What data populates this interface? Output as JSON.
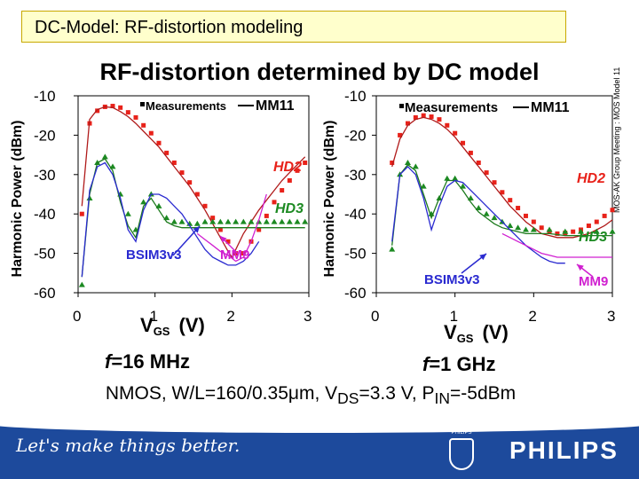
{
  "header": {
    "title": "DC-Model: RF-distortion modeling"
  },
  "slide_title": "RF-distortion determined by DC model",
  "side_note": "MOS-AK Group Meeting : MOS Model 11",
  "conditions_parts": [
    "NMOS, W/L=160/0.35",
    "m, V",
    "DS",
    "=3.3 V, P",
    "IN",
    "=-5dBm"
  ],
  "mu": "μ",
  "footer": {
    "slogan": "Let's make things better.",
    "brand": "PHILIPS",
    "shield_text": "PHILIPS"
  },
  "colors": {
    "hd2": "#e8221a",
    "hd3": "#1c8a22",
    "mm11": "#b01a1a",
    "bsim": "#2a2ad0",
    "mm9": "#d020d0",
    "footer": "#1d4a9c"
  },
  "chart_data": [
    {
      "type": "line",
      "freq_prefix": "f",
      "freq_value": "=16 MHz",
      "ylabel": "Harmonic Power (dBm)",
      "xlabel_main": "V",
      "xlabel_sub": "GS",
      "xlabel_unit": "(V)",
      "xlim": [
        0,
        3
      ],
      "ylim": [
        -60,
        -10
      ],
      "xticks": [
        0,
        1,
        2,
        3
      ],
      "yticks": [
        -10,
        -20,
        -30,
        -40,
        -50,
        -60
      ],
      "legend": {
        "measurements": "Measurements",
        "model": "MM11"
      },
      "labels": {
        "hd2": "HD2",
        "hd3": "HD3",
        "bsim": "BSIM3v3",
        "mm9": "MM9"
      },
      "series": [
        {
          "name": "HD2",
          "kind": "meas",
          "color": "#e8221a",
          "marker": "square",
          "x": [
            0.05,
            0.15,
            0.25,
            0.35,
            0.45,
            0.55,
            0.65,
            0.75,
            0.85,
            0.95,
            1.05,
            1.15,
            1.25,
            1.35,
            1.45,
            1.55,
            1.65,
            1.75,
            1.85,
            1.95,
            2.05,
            2.15,
            2.25,
            2.35,
            2.45,
            2.55,
            2.65,
            2.75,
            2.85,
            2.95
          ],
          "y": [
            -40,
            -17,
            -13.8,
            -12.8,
            -12.6,
            -13,
            -14.2,
            -15.5,
            -17.5,
            -19.5,
            -22,
            -24.5,
            -27,
            -29.5,
            -32,
            -35,
            -38,
            -41,
            -44,
            -47,
            -50,
            -50,
            -47,
            -44,
            -40.5,
            -37,
            -34,
            -31.5,
            -29,
            -27
          ]
        },
        {
          "name": "HD2",
          "kind": "model",
          "color": "#b01a1a",
          "x": [
            0.05,
            0.15,
            0.25,
            0.35,
            0.45,
            0.55,
            0.65,
            0.75,
            0.85,
            0.95,
            1.05,
            1.15,
            1.25,
            1.35,
            1.45,
            1.55,
            1.65,
            1.75,
            1.85,
            1.95,
            2.0,
            2.05,
            2.15,
            2.25,
            2.35,
            2.45,
            2.55,
            2.65,
            2.75,
            2.85,
            2.95
          ],
          "y": [
            -38,
            -16,
            -13.5,
            -12.8,
            -13,
            -14,
            -15.3,
            -17,
            -19,
            -21,
            -23,
            -25.5,
            -28,
            -30.5,
            -33,
            -36,
            -39,
            -42.5,
            -46,
            -49.5,
            -51,
            -49,
            -45,
            -42,
            -39,
            -36.5,
            -34,
            -31.5,
            -29.5,
            -27.5,
            -25.5
          ]
        },
        {
          "name": "HD3",
          "kind": "meas",
          "color": "#1c8a22",
          "marker": "triangle",
          "x": [
            0.05,
            0.15,
            0.25,
            0.35,
            0.45,
            0.55,
            0.65,
            0.75,
            0.85,
            0.95,
            1.05,
            1.15,
            1.25,
            1.35,
            1.45,
            1.55,
            1.65,
            1.75,
            1.85,
            1.95,
            2.05,
            2.15,
            2.25,
            2.35,
            2.45,
            2.55,
            2.65,
            2.75,
            2.85,
            2.95
          ],
          "y": [
            -58,
            -36,
            -27,
            -25.5,
            -28,
            -35,
            -40,
            -44,
            -37,
            -35,
            -38,
            -41,
            -42,
            -42,
            -42.5,
            -42.5,
            -42,
            -42,
            -42,
            -42,
            -42,
            -42,
            -42,
            -42,
            -42,
            -42,
            -42,
            -42,
            -42,
            -42
          ]
        },
        {
          "name": "HD3",
          "kind": "model",
          "color": "#1c7a1c",
          "x": [
            0.05,
            0.15,
            0.25,
            0.35,
            0.45,
            0.55,
            0.65,
            0.75,
            0.85,
            0.95,
            1.05,
            1.15,
            1.25,
            1.35,
            1.45,
            1.55,
            1.65,
            1.75,
            1.85,
            2.05,
            2.25,
            2.45,
            2.65,
            2.85,
            2.95
          ],
          "y": [
            -56,
            -35,
            -27,
            -26,
            -29,
            -37,
            -43,
            -46,
            -38,
            -36,
            -39,
            -42,
            -43,
            -43.5,
            -43.5,
            -43.5,
            -43.5,
            -43.5,
            -43.5,
            -43.5,
            -43.5,
            -43.5,
            -43.5,
            -43.5,
            -43.5
          ]
        },
        {
          "name": "BSIM3v3",
          "kind": "model",
          "color": "#2a2ad0",
          "x": [
            0.05,
            0.15,
            0.25,
            0.35,
            0.45,
            0.55,
            0.65,
            0.75,
            0.85,
            0.95,
            1.05,
            1.15,
            1.25,
            1.35,
            1.45,
            1.55,
            1.65,
            1.75,
            1.85,
            1.95,
            2.05,
            2.15,
            2.25,
            2.35
          ],
          "y": [
            -56,
            -34,
            -28,
            -27,
            -30,
            -36,
            -44,
            -47,
            -39,
            -35,
            -35,
            -36,
            -38,
            -40,
            -43,
            -46,
            -49,
            -51,
            -52,
            -53,
            -53,
            -52,
            -50,
            -47
          ]
        },
        {
          "name": "MM9",
          "kind": "model",
          "color": "#d020d0",
          "x": [
            1.55,
            1.65,
            1.75,
            1.85,
            1.95,
            2.05,
            2.15,
            2.25,
            2.35,
            2.45
          ],
          "y": [
            -45,
            -46.5,
            -48,
            -49.5,
            -50.5,
            -52,
            -51,
            -47,
            -41.5,
            -35
          ]
        }
      ]
    },
    {
      "type": "line",
      "freq_prefix": "f",
      "freq_value": "=1 GHz",
      "ylabel": "Harmonic Power (dBm)",
      "xlabel_main": "V",
      "xlabel_sub": "GS",
      "xlabel_unit": "(V)",
      "xlim": [
        0,
        3
      ],
      "ylim": [
        -60,
        -10
      ],
      "xticks": [
        0,
        1,
        2,
        3
      ],
      "yticks": [
        -10,
        -20,
        -30,
        -40,
        -50,
        -60
      ],
      "legend": {
        "measurements": "Measurements",
        "model": "MM11"
      },
      "labels": {
        "hd2": "HD2",
        "hd3": "HD3",
        "bsim": "BSIM3v3",
        "mm9": "MM9"
      },
      "series": [
        {
          "name": "HD2",
          "kind": "meas",
          "color": "#e8221a",
          "marker": "square",
          "x": [
            0.2,
            0.3,
            0.4,
            0.5,
            0.6,
            0.7,
            0.8,
            0.9,
            1.0,
            1.1,
            1.2,
            1.3,
            1.4,
            1.5,
            1.6,
            1.7,
            1.8,
            1.9,
            2.0,
            2.1,
            2.2,
            2.3,
            2.4,
            2.5,
            2.6,
            2.7,
            2.8,
            2.9,
            3.0
          ],
          "y": [
            -27,
            -20,
            -17,
            -15.5,
            -15,
            -15.3,
            -16,
            -17.5,
            -19.5,
            -22,
            -24.5,
            -27,
            -29.5,
            -32,
            -34.5,
            -36.5,
            -38.5,
            -40.5,
            -42,
            -43.5,
            -44.5,
            -45,
            -44.8,
            -44.5,
            -44,
            -43,
            -42,
            -40.5,
            -39
          ]
        },
        {
          "name": "HD2",
          "kind": "model",
          "color": "#b01a1a",
          "x": [
            0.2,
            0.3,
            0.4,
            0.5,
            0.6,
            0.7,
            0.8,
            0.9,
            1.0,
            1.1,
            1.2,
            1.3,
            1.4,
            1.5,
            1.6,
            1.7,
            1.8,
            1.9,
            2.0,
            2.1,
            2.2,
            2.3,
            2.4,
            2.5,
            2.6,
            2.7,
            2.8,
            2.9,
            3.0
          ],
          "y": [
            -28,
            -21,
            -17.5,
            -16,
            -15.5,
            -16,
            -17,
            -18.5,
            -20.5,
            -23,
            -25.5,
            -28,
            -30.5,
            -33,
            -35.5,
            -38,
            -40,
            -42,
            -43.5,
            -45,
            -45.5,
            -46,
            -46,
            -46,
            -45.5,
            -45,
            -44,
            -43,
            -41.5
          ]
        },
        {
          "name": "HD3",
          "kind": "meas",
          "color": "#1c8a22",
          "marker": "triangle",
          "x": [
            0.2,
            0.3,
            0.4,
            0.5,
            0.6,
            0.7,
            0.8,
            0.9,
            1.0,
            1.1,
            1.2,
            1.3,
            1.4,
            1.5,
            1.6,
            1.7,
            1.8,
            1.9,
            2.0,
            2.2,
            2.4,
            2.6,
            2.8,
            3.0
          ],
          "y": [
            -49,
            -30,
            -27,
            -28,
            -33,
            -40,
            -36,
            -31,
            -31,
            -33,
            -36,
            -38.5,
            -40,
            -41,
            -42,
            -43,
            -43.5,
            -44,
            -44,
            -44,
            -44.5,
            -44.5,
            -44.5,
            -44.5
          ]
        },
        {
          "name": "HD3",
          "kind": "model",
          "color": "#1c7a1c",
          "x": [
            0.2,
            0.3,
            0.4,
            0.5,
            0.6,
            0.7,
            0.8,
            0.9,
            1.0,
            1.1,
            1.2,
            1.3,
            1.4,
            1.5,
            1.6,
            1.7,
            1.8,
            1.9,
            2.0,
            2.2,
            2.4,
            2.6,
            2.8,
            3.0
          ],
          "y": [
            -48,
            -30,
            -27.5,
            -29,
            -35,
            -41,
            -36,
            -31.5,
            -31.5,
            -34,
            -37,
            -39.5,
            -41,
            -42.5,
            -43.5,
            -44,
            -44.5,
            -45,
            -45,
            -45,
            -45.5,
            -45.5,
            -45.5,
            -45.5
          ]
        },
        {
          "name": "BSIM3v3",
          "kind": "model",
          "color": "#2a2ad0",
          "x": [
            0.2,
            0.3,
            0.4,
            0.5,
            0.6,
            0.7,
            0.8,
            0.9,
            1.0,
            1.1,
            1.2,
            1.3,
            1.4,
            1.5,
            1.6,
            1.7,
            1.8,
            1.9,
            2.0,
            2.1,
            2.2,
            2.3,
            2.4
          ],
          "y": [
            -47,
            -30,
            -28,
            -30,
            -36,
            -44,
            -38,
            -33,
            -31.5,
            -32,
            -34,
            -36,
            -38,
            -40,
            -42,
            -44,
            -46,
            -48,
            -49.5,
            -51,
            -52,
            -52.5,
            -52.5
          ]
        },
        {
          "name": "MM9",
          "kind": "model",
          "color": "#d020d0",
          "x": [
            1.6,
            1.7,
            1.8,
            1.9,
            2.0,
            2.1,
            2.2,
            2.3,
            2.4,
            2.5,
            2.6,
            2.7,
            2.8,
            2.9,
            3.0
          ],
          "y": [
            -45,
            -46,
            -47,
            -48,
            -49,
            -50,
            -50.5,
            -51,
            -51,
            -51,
            -51,
            -51,
            -51,
            -51,
            -51
          ]
        }
      ]
    }
  ]
}
